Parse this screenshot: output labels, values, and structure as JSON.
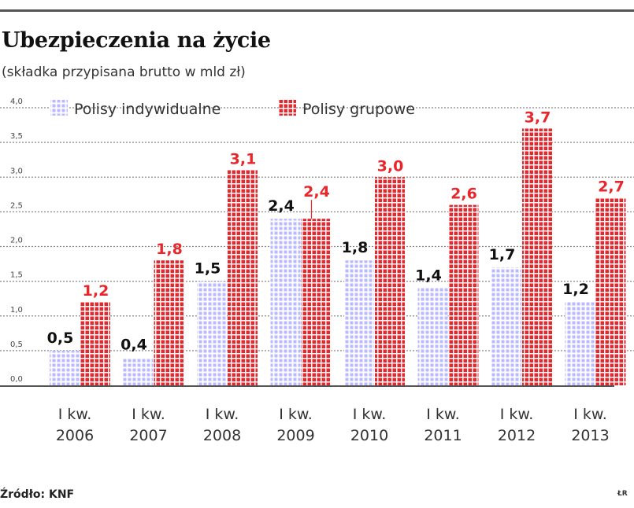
{
  "header": {
    "title": "Ubezpieczenia na życie",
    "subtitle": "(składka przypisana brutto w mld zł)"
  },
  "footer": {
    "source": "Źródło: KNF",
    "credit": "ŁR"
  },
  "colors": {
    "individual": "#b9b9ff",
    "group": "#e8262b",
    "gridline": "#888888",
    "axis": "#555555"
  },
  "chart_data": {
    "type": "bar",
    "title": "Ubezpieczenia na życie",
    "subtitle": "(składka przypisana brutto w mld zł)",
    "xlabel": "",
    "ylabel": "",
    "ylim": [
      0,
      4.0
    ],
    "yticks": [
      "0,0",
      "0,5",
      "1,0",
      "1,5",
      "2,0",
      "2,5",
      "3,0",
      "3,5",
      "4,0"
    ],
    "grid": true,
    "legend_position": "top",
    "categories": [
      [
        "I kw.",
        "2006"
      ],
      [
        "I kw.",
        "2007"
      ],
      [
        "I kw.",
        "2008"
      ],
      [
        "I kw.",
        "2009"
      ],
      [
        "I kw.",
        "2010"
      ],
      [
        "I kw.",
        "2011"
      ],
      [
        "I kw.",
        "2012"
      ],
      [
        "I kw.",
        "2013"
      ]
    ],
    "series": [
      {
        "name": "Polisy indywidualne",
        "values": [
          0.5,
          0.4,
          1.5,
          2.4,
          1.8,
          1.4,
          1.7,
          1.2
        ],
        "labels": [
          "0,5",
          "0,4",
          "1,5",
          "2,4",
          "1,8",
          "1,4",
          "1,7",
          "1,2"
        ]
      },
      {
        "name": "Polisy grupowe",
        "values": [
          1.2,
          1.8,
          3.1,
          2.4,
          3.0,
          2.6,
          3.7,
          2.7
        ],
        "labels": [
          "1,2",
          "1,8",
          "3,1",
          "2,4",
          "3,0",
          "2,6",
          "3,7",
          "2,7"
        ]
      }
    ],
    "source": "Źródło: KNF"
  }
}
